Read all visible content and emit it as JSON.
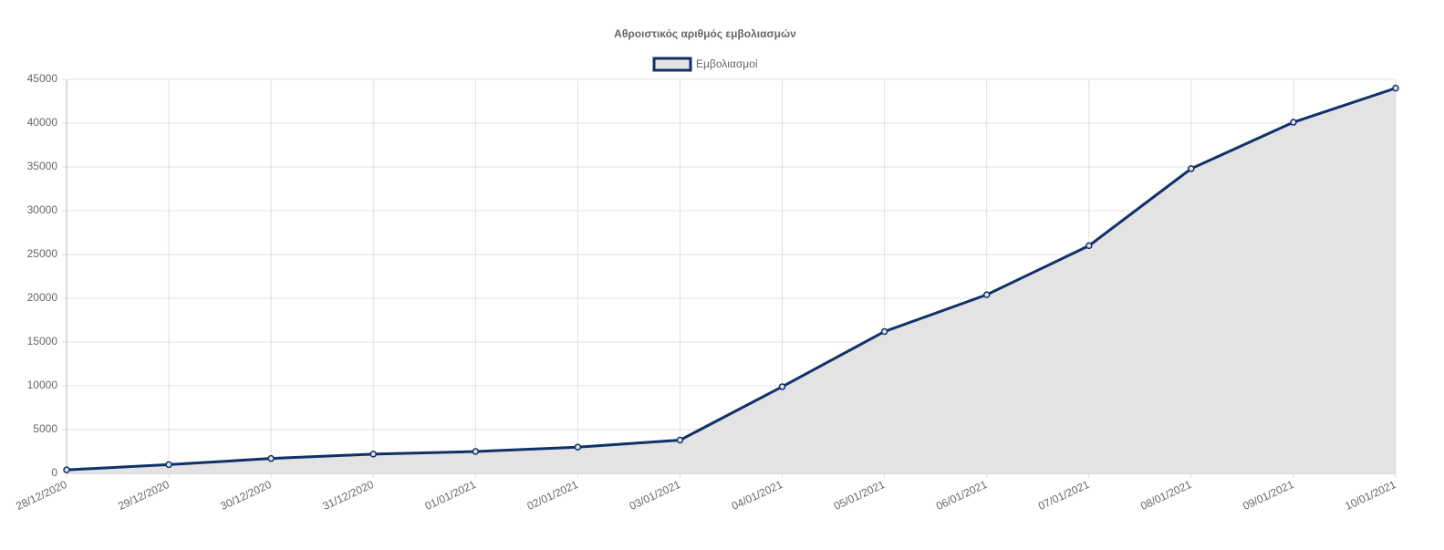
{
  "chart_data": {
    "type": "line",
    "title": "Αθροιστικός αριθμός εμβολιασμών",
    "categories": [
      "28/12/2020",
      "29/12/2020",
      "30/12/2020",
      "31/12/2020",
      "01/01/2021",
      "02/01/2021",
      "03/01/2021",
      "04/01/2021",
      "05/01/2021",
      "06/01/2021",
      "07/01/2021",
      "08/01/2021",
      "09/01/2021",
      "10/01/2021"
    ],
    "series": [
      {
        "name": "Εμβολιασμοί",
        "color": "#0f3169",
        "fill_color": "#e3e3e3",
        "values": [
          400,
          1000,
          1700,
          2200,
          2500,
          3000,
          3800,
          9900,
          16200,
          20400,
          26000,
          34800,
          40100,
          44000
        ]
      }
    ],
    "ylim": [
      0,
      45000
    ],
    "yticks": [
      0,
      5000,
      10000,
      15000,
      20000,
      25000,
      30000,
      35000,
      40000,
      45000
    ],
    "grid": true,
    "legend": "top"
  }
}
